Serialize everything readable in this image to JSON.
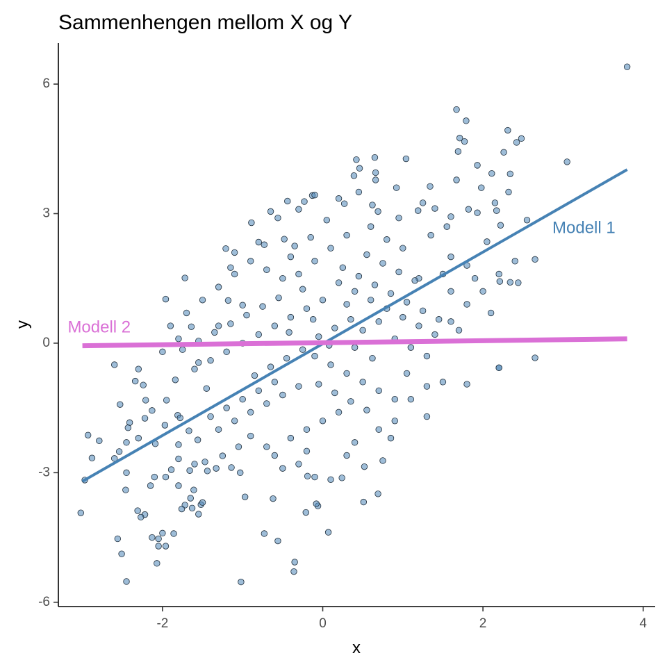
{
  "chart_data": {
    "type": "scatter",
    "title": "Sammenhengen mellom X og Y",
    "xlabel": "x",
    "ylabel": "y",
    "xlim": [
      -3.3,
      4.15
    ],
    "ylim": [
      -6.1,
      6.95
    ],
    "x_ticks": [
      -2,
      0,
      2,
      4
    ],
    "x_tick_labels": [
      "-2",
      "0",
      "2",
      "4"
    ],
    "y_ticks": [
      -6,
      -3,
      0,
      3,
      6
    ],
    "y_tick_labels": [
      "-6",
      "-3",
      "0",
      "3",
      "6"
    ],
    "grid": false,
    "point_color": "#4f86b8",
    "point_opacity": 0.55,
    "points": [
      [
        3.8,
        6.4
      ],
      [
        1.67,
        5.41
      ],
      [
        1.79,
        5.15
      ],
      [
        2.31,
        4.93
      ],
      [
        2.48,
        4.74
      ],
      [
        2.42,
        4.65
      ],
      [
        1.71,
        4.75
      ],
      [
        1.77,
        4.67
      ],
      [
        1.69,
        4.44
      ],
      [
        2.26,
        4.42
      ],
      [
        3.05,
        4.2
      ],
      [
        0.42,
        4.25
      ],
      [
        0.65,
        4.3
      ],
      [
        1.04,
        4.27
      ],
      [
        0.46,
        4.05
      ],
      [
        0.39,
        3.88
      ],
      [
        0.66,
        3.95
      ],
      [
        0.92,
        3.6
      ],
      [
        0.66,
        3.78
      ],
      [
        1.67,
        3.78
      ],
      [
        1.93,
        4.12
      ],
      [
        2.11,
        3.93
      ],
      [
        2.34,
        3.92
      ],
      [
        1.98,
        3.6
      ],
      [
        2.32,
        3.5
      ],
      [
        1.34,
        3.63
      ],
      [
        -0.13,
        3.42
      ],
      [
        -0.1,
        3.43
      ],
      [
        -0.23,
        3.28
      ],
      [
        -0.44,
        3.29
      ],
      [
        -0.3,
        3.1
      ],
      [
        0.27,
        3.23
      ],
      [
        0.62,
        3.2
      ],
      [
        0.69,
        3.05
      ],
      [
        1.19,
        3.07
      ],
      [
        1.4,
        3.12
      ],
      [
        1.6,
        2.93
      ],
      [
        1.82,
        3.1
      ],
      [
        2.15,
        3.25
      ],
      [
        2.17,
        3.07
      ],
      [
        1.93,
        3.02
      ],
      [
        2.22,
        2.73
      ],
      [
        2.65,
        1.94
      ],
      [
        2.34,
        1.41
      ],
      [
        2.44,
        1.4
      ],
      [
        2.21,
        1.43
      ],
      [
        2.2,
        -0.57
      ],
      [
        2.65,
        -0.34
      ],
      [
        -0.89,
        2.79
      ],
      [
        -1.21,
        2.19
      ],
      [
        -1.1,
        2.1
      ],
      [
        -0.8,
        2.34
      ],
      [
        -0.73,
        2.28
      ],
      [
        -0.48,
        2.41
      ],
      [
        -0.56,
        2.9
      ],
      [
        -1.96,
        1.02
      ],
      [
        -1.72,
        1.51
      ],
      [
        -1.18,
        0.99
      ],
      [
        -1.0,
        0.88
      ],
      [
        -1.3,
        0.4
      ],
      [
        -1.64,
        0.38
      ],
      [
        -1.55,
        -0.45
      ],
      [
        -1.84,
        -0.85
      ],
      [
        -1.95,
        -1.32
      ],
      [
        -2.21,
        -1.32
      ],
      [
        -2.34,
        -0.88
      ],
      [
        -2.24,
        -0.97
      ],
      [
        -2.6,
        -0.5
      ],
      [
        -2.53,
        -1.42
      ],
      [
        -2.13,
        -1.56
      ],
      [
        -2.09,
        -2.33
      ],
      [
        -2.22,
        -1.74
      ],
      [
        -2.41,
        -1.84
      ],
      [
        -2.43,
        -1.96
      ],
      [
        -2.45,
        -2.3
      ],
      [
        -2.3,
        -2.2
      ],
      [
        -1.97,
        -1.9
      ],
      [
        -1.81,
        -1.67
      ],
      [
        -1.78,
        -1.73
      ],
      [
        -1.67,
        -2.03
      ],
      [
        -1.56,
        -2.24
      ],
      [
        -2.54,
        -2.51
      ],
      [
        -2.79,
        -2.26
      ],
      [
        -2.6,
        -2.67
      ],
      [
        -2.88,
        -2.66
      ],
      [
        -2.93,
        -2.13
      ],
      [
        -2.97,
        -3.17
      ],
      [
        -2.45,
        -3.0
      ],
      [
        -2.46,
        -3.4
      ],
      [
        -2.1,
        -3.1
      ],
      [
        -2.15,
        -3.3
      ],
      [
        -1.96,
        -3.1
      ],
      [
        -1.89,
        -2.93
      ],
      [
        -1.8,
        -3.3
      ],
      [
        -1.61,
        -3.4
      ],
      [
        -1.52,
        -3.74
      ],
      [
        -1.65,
        -3.59
      ],
      [
        -1.5,
        -3.69
      ],
      [
        -1.72,
        -3.75
      ],
      [
        -1.76,
        -3.84
      ],
      [
        -1.63,
        -3.82
      ],
      [
        -1.55,
        -3.96
      ],
      [
        -2.31,
        -3.88
      ],
      [
        -2.22,
        -3.97
      ],
      [
        -2.27,
        -4.03
      ],
      [
        -2.0,
        -4.4
      ],
      [
        -1.86,
        -4.41
      ],
      [
        -2.05,
        -4.53
      ],
      [
        -2.05,
        -4.7
      ],
      [
        -1.96,
        -4.7
      ],
      [
        -2.56,
        -4.53
      ],
      [
        -2.51,
        -4.88
      ],
      [
        -2.45,
        -5.52
      ],
      [
        -2.07,
        -5.1
      ],
      [
        -1.02,
        -5.53
      ],
      [
        -0.35,
        -5.07
      ],
      [
        -0.36,
        -5.29
      ],
      [
        -0.73,
        -4.41
      ],
      [
        -0.56,
        -4.58
      ],
      [
        0.07,
        -4.38
      ],
      [
        -0.21,
        -3.92
      ],
      [
        -0.06,
        -3.77
      ],
      [
        -0.08,
        -3.72
      ],
      [
        0.51,
        -3.68
      ],
      [
        0.69,
        -3.49
      ],
      [
        -0.97,
        -3.56
      ],
      [
        -0.62,
        -3.6
      ],
      [
        -0.1,
        -3.1
      ],
      [
        0.1,
        -3.16
      ],
      [
        0.24,
        -3.12
      ],
      [
        -0.19,
        -3.08
      ],
      [
        0.52,
        -2.86
      ],
      [
        0.75,
        -2.72
      ],
      [
        -1.03,
        -3.0
      ],
      [
        -1.14,
        -2.88
      ],
      [
        -1.25,
        -2.61
      ],
      [
        -1.47,
        -2.75
      ],
      [
        -1.8,
        -2.68
      ],
      [
        -1.66,
        -2.95
      ],
      [
        -1.44,
        -2.96
      ],
      [
        -3.02,
        -3.93
      ],
      [
        -2.13,
        -4.5
      ],
      [
        -1.6,
        -2.8
      ],
      [
        -1.8,
        -2.35
      ],
      [
        -1.33,
        -2.9
      ],
      [
        -0.5,
        -2.9
      ],
      [
        -0.7,
        -2.4
      ],
      [
        -0.9,
        -2.15
      ],
      [
        -0.2,
        -2.5
      ],
      [
        0.4,
        -2.3
      ],
      [
        0.7,
        -2.0
      ],
      [
        0.9,
        -1.8
      ],
      [
        1.1,
        -1.3
      ],
      [
        1.3,
        -1.0
      ],
      [
        1.5,
        -0.9
      ],
      [
        1.8,
        -0.95
      ],
      [
        2.2,
        -0.57
      ],
      [
        1.6,
        2.0
      ],
      [
        1.8,
        1.8
      ],
      [
        1.5,
        1.6
      ],
      [
        1.2,
        1.5
      ],
      [
        1.0,
        2.2
      ],
      [
        0.8,
        2.4
      ],
      [
        0.6,
        2.7
      ],
      [
        0.3,
        2.5
      ],
      [
        0.1,
        2.2
      ],
      [
        -0.1,
        1.9
      ],
      [
        -0.3,
        1.6
      ],
      [
        -0.5,
        1.5
      ],
      [
        -0.7,
        1.7
      ],
      [
        -0.9,
        1.9
      ],
      [
        -1.1,
        1.6
      ],
      [
        -1.3,
        1.3
      ],
      [
        -1.5,
        1.0
      ],
      [
        -1.7,
        0.7
      ],
      [
        -1.9,
        0.4
      ],
      [
        0.2,
        1.4
      ],
      [
        0.4,
        1.2
      ],
      [
        0.6,
        1.0
      ],
      [
        0.8,
        0.8
      ],
      [
        1.0,
        0.6
      ],
      [
        1.2,
        0.4
      ],
      [
        1.4,
        0.2
      ],
      [
        1.6,
        0.5
      ],
      [
        1.8,
        0.9
      ],
      [
        2.0,
        1.2
      ],
      [
        2.2,
        1.6
      ],
      [
        2.4,
        1.9
      ],
      [
        0.0,
        1.0
      ],
      [
        -0.2,
        0.8
      ],
      [
        -0.4,
        0.6
      ],
      [
        -0.6,
        0.4
      ],
      [
        -0.8,
        0.2
      ],
      [
        -1.0,
        0.0
      ],
      [
        -1.2,
        -0.2
      ],
      [
        -1.4,
        -0.4
      ],
      [
        -1.6,
        -0.6
      ],
      [
        -0.1,
        -0.3
      ],
      [
        0.1,
        -0.5
      ],
      [
        0.3,
        -0.7
      ],
      [
        0.5,
        -0.9
      ],
      [
        0.7,
        -1.1
      ],
      [
        0.9,
        -1.3
      ],
      [
        -0.3,
        -1.0
      ],
      [
        -0.5,
        -1.2
      ],
      [
        -0.7,
        -1.4
      ],
      [
        -0.9,
        -1.6
      ],
      [
        -1.1,
        -1.8
      ],
      [
        -1.3,
        -2.0
      ],
      [
        0.2,
        -1.6
      ],
      [
        0.0,
        -1.8
      ],
      [
        -0.2,
        -2.0
      ],
      [
        -0.4,
        -2.2
      ],
      [
        -0.6,
        -2.6
      ],
      [
        0.5,
        0.3
      ],
      [
        0.7,
        0.5
      ],
      [
        0.9,
        0.1
      ],
      [
        1.1,
        -0.1
      ],
      [
        1.3,
        -0.3
      ],
      [
        0.4,
        -0.1
      ],
      [
        -0.05,
        0.15
      ],
      [
        0.15,
        0.35
      ],
      [
        0.35,
        0.55
      ],
      [
        -0.25,
        -0.15
      ],
      [
        -0.45,
        -0.35
      ],
      [
        -0.65,
        -0.55
      ],
      [
        -0.85,
        -0.75
      ],
      [
        0.25,
        1.75
      ],
      [
        0.45,
        1.55
      ],
      [
        0.65,
        1.35
      ],
      [
        0.85,
        1.15
      ],
      [
        1.05,
        0.95
      ],
      [
        1.25,
        0.75
      ],
      [
        1.45,
        0.55
      ],
      [
        -0.15,
        2.45
      ],
      [
        -0.35,
        2.25
      ],
      [
        0.55,
        2.05
      ],
      [
        0.75,
        1.85
      ],
      [
        0.95,
        1.65
      ],
      [
        1.15,
        1.45
      ],
      [
        -0.55,
        1.05
      ],
      [
        -0.75,
        0.85
      ],
      [
        -0.95,
        0.65
      ],
      [
        -1.15,
        0.45
      ],
      [
        -1.35,
        0.25
      ],
      [
        -1.55,
        0.05
      ],
      [
        -1.75,
        -0.15
      ],
      [
        -0.6,
        -0.9
      ],
      [
        -0.8,
        -1.1
      ],
      [
        -1.0,
        -1.3
      ],
      [
        -1.2,
        -1.5
      ],
      [
        -1.4,
        -1.7
      ],
      [
        0.35,
        -1.35
      ],
      [
        0.55,
        -1.55
      ],
      [
        0.15,
        -1.15
      ],
      [
        -0.05,
        -0.95
      ],
      [
        1.6,
        1.2
      ],
      [
        1.9,
        1.5
      ],
      [
        2.1,
        0.7
      ],
      [
        1.7,
        0.3
      ],
      [
        1.35,
        2.5
      ],
      [
        1.55,
        2.7
      ],
      [
        0.95,
        2.9
      ],
      [
        0.05,
        2.85
      ],
      [
        -0.4,
        2.0
      ],
      [
        -0.25,
        1.25
      ],
      [
        0.3,
        0.9
      ],
      [
        -1.45,
        -1.05
      ],
      [
        -1.05,
        -2.4
      ],
      [
        -0.3,
        -2.8
      ],
      [
        0.3,
        -2.6
      ],
      [
        0.85,
        -2.2
      ],
      [
        1.3,
        -1.7
      ],
      [
        -2.0,
        -0.2
      ],
      [
        -1.8,
        0.1
      ],
      [
        -2.3,
        -0.6
      ],
      [
        -1.15,
        1.75
      ],
      [
        -0.65,
        3.05
      ],
      [
        0.2,
        3.35
      ],
      [
        0.45,
        3.5
      ],
      [
        1.25,
        3.25
      ],
      [
        2.55,
        2.85
      ],
      [
        2.05,
        2.35
      ],
      [
        1.05,
        -0.7
      ],
      [
        0.62,
        -0.35
      ],
      [
        -0.42,
        0.25
      ],
      [
        -0.12,
        0.55
      ],
      [
        0.08,
        -0.05
      ]
    ],
    "series": [
      {
        "name": "Modell 1",
        "color": "#4682b4",
        "x": [
          -3.0,
          3.8
        ],
        "y": [
          -3.2,
          4.02
        ]
      },
      {
        "name": "Modell 2",
        "color": "#da70d6",
        "x": [
          -3.0,
          3.8
        ],
        "y": [
          -0.06,
          0.1
        ]
      }
    ],
    "annotations": [
      {
        "text": "Modell 1",
        "x": 3.26,
        "y": 2.65,
        "color": "#4682b4"
      },
      {
        "text": "Modell 2",
        "x": -2.79,
        "y": 0.35,
        "color": "#da70d6"
      }
    ]
  }
}
